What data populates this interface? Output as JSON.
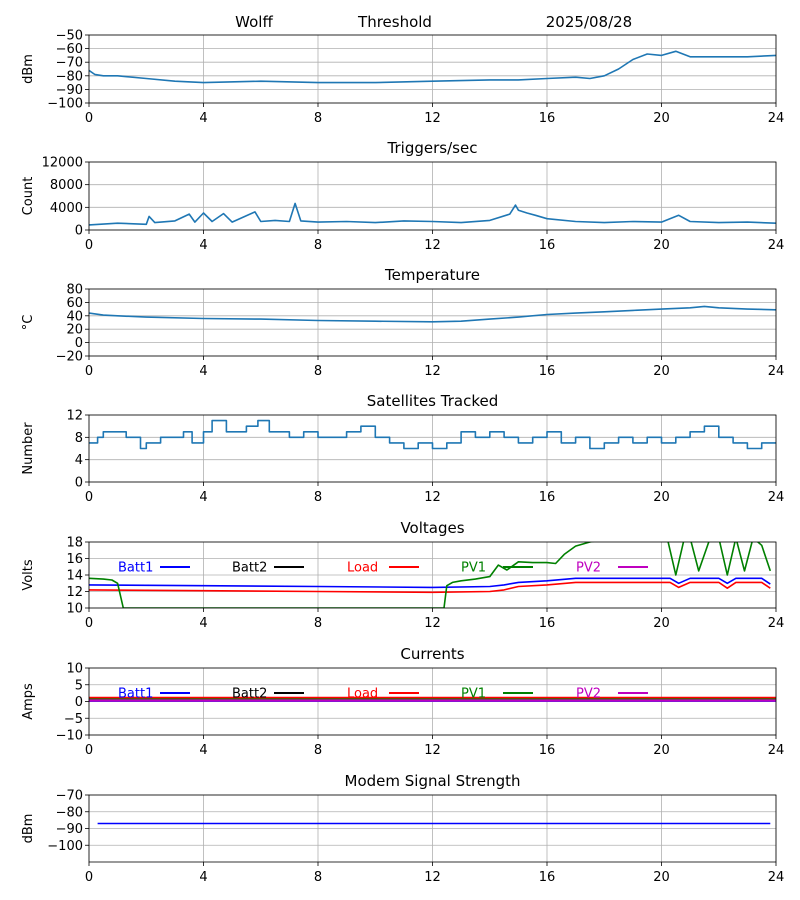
{
  "header": {
    "station": "Wolff",
    "mode": "Threshold",
    "date": "2025/08/28"
  },
  "chart_data": [
    {
      "id": "threshold",
      "type": "line",
      "title": "",
      "xlabel": "",
      "ylabel": "dBm",
      "xlim": [
        0,
        24
      ],
      "ylim": [
        -100,
        -50
      ],
      "xticks": [
        0,
        4,
        8,
        12,
        16,
        20,
        24
      ],
      "yticks": [
        -100,
        -90,
        -80,
        -70,
        -60,
        -50
      ],
      "grid": true,
      "series": [
        {
          "color": "#1f77b4",
          "x": [
            0,
            0.2,
            0.5,
            1,
            2,
            3,
            4,
            6,
            8,
            10,
            12,
            14,
            15,
            16,
            17,
            17.5,
            18,
            18.5,
            19,
            19.5,
            20,
            20.5,
            21,
            22,
            23,
            24
          ],
          "y": [
            -76,
            -79,
            -80,
            -80,
            -82,
            -84,
            -85,
            -84,
            -85,
            -85,
            -84,
            -83,
            -83,
            -82,
            -81,
            -82,
            -80,
            -75,
            -68,
            -64,
            -65,
            -62,
            -66,
            -66,
            -66,
            -65
          ]
        }
      ]
    },
    {
      "id": "triggers",
      "type": "line",
      "title": "Triggers/sec",
      "xlabel": "",
      "ylabel": "Count",
      "xlim": [
        0,
        24
      ],
      "ylim": [
        0,
        12000
      ],
      "xticks": [
        0,
        4,
        8,
        12,
        16,
        20,
        24
      ],
      "yticks": [
        0,
        4000,
        8000,
        12000
      ],
      "grid": true,
      "series": [
        {
          "color": "#1f77b4",
          "x": [
            0,
            1,
            2,
            2.1,
            2.3,
            3,
            3.5,
            3.7,
            4,
            4.3,
            4.7,
            5,
            5.8,
            6,
            6.5,
            7,
            7.2,
            7.4,
            8,
            9,
            10,
            11,
            12,
            13,
            14,
            14.7,
            14.9,
            15,
            15.3,
            15.6,
            16,
            17,
            18,
            19,
            20,
            20.6,
            21,
            22,
            23,
            24
          ],
          "y": [
            900,
            1200,
            1000,
            2400,
            1300,
            1600,
            2800,
            1400,
            3000,
            1500,
            2900,
            1400,
            3200,
            1500,
            1700,
            1500,
            4700,
            1600,
            1400,
            1500,
            1300,
            1600,
            1500,
            1300,
            1700,
            2800,
            4400,
            3500,
            3000,
            2600,
            2000,
            1500,
            1300,
            1500,
            1400,
            2600,
            1500,
            1300,
            1400,
            1200
          ]
        }
      ]
    },
    {
      "id": "temperature",
      "type": "line",
      "title": "Temperature",
      "xlabel": "",
      "ylabel": "°C",
      "xlim": [
        0,
        24
      ],
      "ylim": [
        -20,
        80
      ],
      "xticks": [
        0,
        4,
        8,
        12,
        16,
        20,
        24
      ],
      "yticks": [
        -20,
        0,
        20,
        40,
        60,
        80
      ],
      "grid": true,
      "series": [
        {
          "color": "#1f77b4",
          "x": [
            0,
            0.5,
            1,
            2,
            4,
            6,
            8,
            10,
            12,
            13,
            14,
            15,
            16,
            17,
            18,
            19,
            20,
            21,
            21.5,
            22,
            23,
            24
          ],
          "y": [
            44,
            41,
            40,
            38,
            36,
            35,
            33,
            32,
            31,
            32,
            35,
            38,
            42,
            44,
            46,
            48,
            50,
            52,
            54,
            52,
            50,
            49
          ]
        }
      ]
    },
    {
      "id": "satellites",
      "type": "line",
      "title": "Satellites Tracked",
      "xlabel": "",
      "ylabel": "Number",
      "xlim": [
        0,
        24
      ],
      "ylim": [
        0,
        12
      ],
      "xticks": [
        0,
        4,
        8,
        12,
        16,
        20,
        24
      ],
      "yticks": [
        0,
        4,
        8,
        12
      ],
      "grid": true,
      "series": [
        {
          "color": "#1f77b4",
          "step": true,
          "x": [
            0,
            0.3,
            0.5,
            1.3,
            1.8,
            2,
            2.5,
            3,
            3.3,
            3.6,
            4,
            4.3,
            4.8,
            5.5,
            5.9,
            6.3,
            7,
            7.5,
            8,
            8.5,
            9,
            9.5,
            10,
            10.5,
            11,
            11.5,
            12,
            12.5,
            13,
            13.5,
            14,
            14.5,
            15,
            15.5,
            16,
            16.5,
            17,
            17.5,
            18,
            18.5,
            19,
            19.5,
            20,
            20.5,
            21,
            21.5,
            22,
            22.5,
            23,
            23.5,
            24
          ],
          "y": [
            7,
            8,
            9,
            8,
            6,
            7,
            8,
            8,
            9,
            7,
            9,
            11,
            9,
            10,
            11,
            9,
            8,
            9,
            8,
            8,
            9,
            10,
            8,
            7,
            6,
            7,
            6,
            7,
            9,
            8,
            9,
            8,
            7,
            8,
            9,
            7,
            8,
            6,
            7,
            8,
            7,
            8,
            7,
            8,
            9,
            10,
            8,
            7,
            6,
            7,
            7
          ]
        }
      ]
    },
    {
      "id": "voltages",
      "type": "line",
      "title": "Voltages",
      "xlabel": "",
      "ylabel": "Volts",
      "xlim": [
        0,
        24
      ],
      "ylim": [
        10,
        18
      ],
      "xticks": [
        0,
        4,
        8,
        12,
        16,
        20,
        24
      ],
      "yticks": [
        10,
        12,
        14,
        16,
        18
      ],
      "grid": true,
      "legend": "top",
      "series": [
        {
          "name": "Batt1",
          "color": "#0000ff",
          "x": [
            0,
            4,
            8,
            12,
            14,
            14.5,
            15,
            16,
            17,
            18,
            19,
            20,
            20.3,
            20.6,
            21,
            21.5,
            22,
            22.3,
            22.6,
            23,
            23.5,
            23.8
          ],
          "y": [
            12.8,
            12.7,
            12.6,
            12.5,
            12.6,
            12.8,
            13.1,
            13.3,
            13.6,
            13.6,
            13.6,
            13.6,
            13.6,
            13.0,
            13.6,
            13.6,
            13.6,
            13.0,
            13.6,
            13.6,
            13.6,
            12.9
          ]
        },
        {
          "name": "Batt2",
          "color": "#000000",
          "x": [],
          "y": []
        },
        {
          "name": "Load",
          "color": "#ff0000",
          "x": [
            0,
            4,
            8,
            12,
            14,
            14.5,
            15,
            16,
            17,
            18,
            19,
            20,
            20.3,
            20.6,
            21,
            21.5,
            22,
            22.3,
            22.6,
            23,
            23.5,
            23.8
          ],
          "y": [
            12.2,
            12.1,
            12.0,
            11.9,
            12.0,
            12.2,
            12.6,
            12.8,
            13.1,
            13.1,
            13.1,
            13.1,
            13.1,
            12.5,
            13.1,
            13.1,
            13.1,
            12.4,
            13.1,
            13.1,
            13.1,
            12.4
          ]
        },
        {
          "name": "PV1",
          "color": "#008000",
          "x": [
            0,
            0.5,
            0.8,
            1.0,
            1.2,
            12.4,
            12.5,
            12.7,
            13,
            13.5,
            14,
            14.3,
            14.6,
            15,
            15.5,
            16,
            16.3,
            16.6,
            17,
            17.5,
            18,
            18.5,
            19,
            19.5,
            20,
            20.2,
            20.5,
            20.8,
            21,
            21.3,
            21.7,
            22,
            22.3,
            22.6,
            22.9,
            23.2,
            23.5,
            23.8
          ],
          "y": [
            13.6,
            13.5,
            13.4,
            13.0,
            10.0,
            10.0,
            12.7,
            13.1,
            13.3,
            13.5,
            13.8,
            15.2,
            14.6,
            15.6,
            15.5,
            15.5,
            15.4,
            16.5,
            17.5,
            18.0,
            18.3,
            18.3,
            18.5,
            18.5,
            18.5,
            18.5,
            14.0,
            18.5,
            18.5,
            14.5,
            18.5,
            18.5,
            14.0,
            18.5,
            14.5,
            18.5,
            17.6,
            14.5
          ]
        },
        {
          "name": "PV2",
          "color": "#bf00bf",
          "x": [],
          "y": []
        }
      ]
    },
    {
      "id": "currents",
      "type": "line",
      "title": "Currents",
      "xlabel": "",
      "ylabel": "Amps",
      "xlim": [
        0,
        24
      ],
      "ylim": [
        -10,
        10
      ],
      "xticks": [
        0,
        4,
        8,
        12,
        16,
        20,
        24
      ],
      "yticks": [
        -10,
        -5,
        0,
        5,
        10
      ],
      "grid": true,
      "legend": "top",
      "series": [
        {
          "name": "Batt1",
          "color": "#0000ff",
          "x": [
            0,
            24
          ],
          "y": [
            0.2,
            0.2
          ]
        },
        {
          "name": "Batt2",
          "color": "#000000",
          "x": [],
          "y": []
        },
        {
          "name": "Load",
          "color": "#ff0000",
          "x": [
            0,
            24
          ],
          "y": [
            1.1,
            1.1
          ]
        },
        {
          "name": "PV1",
          "color": "#008000",
          "x": [
            0,
            24
          ],
          "y": [
            0.6,
            0.6
          ]
        },
        {
          "name": "PV2",
          "color": "#bf00bf",
          "x": [
            0,
            24
          ],
          "y": [
            0.3,
            0.3
          ]
        }
      ]
    },
    {
      "id": "modem",
      "type": "line",
      "title": "Modem Signal Strength",
      "xlabel": "",
      "ylabel": "dBm",
      "xlim": [
        0,
        24
      ],
      "ylim": [
        -110,
        -70
      ],
      "xticks": [
        0,
        4,
        8,
        12,
        16,
        20,
        24
      ],
      "yticks": [
        -100,
        -90,
        -80,
        -70
      ],
      "grid": true,
      "series": [
        {
          "color": "#0000ff",
          "x": [
            0.3,
            23.8
          ],
          "y": [
            -87,
            -87
          ]
        }
      ]
    }
  ]
}
